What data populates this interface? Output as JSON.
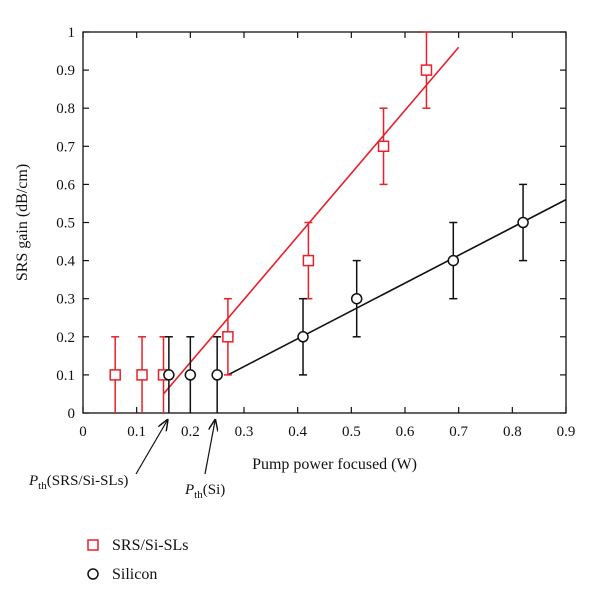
{
  "chart_data": {
    "type": "scatter",
    "title": "",
    "xlabel": "Pump power focused (W)",
    "ylabel": "SRS gain (dB/cm)",
    "xlim": [
      0,
      0.9
    ],
    "ylim": [
      0,
      1
    ],
    "xticks": [
      "0",
      "0.1",
      "0.2",
      "0.3",
      "0.4",
      "0.5",
      "0.6",
      "0.7",
      "0.8",
      "0.9"
    ],
    "yticks": [
      "0",
      "0.1",
      "0.2",
      "0.3",
      "0.4",
      "0.5",
      "0.6",
      "0.7",
      "0.8",
      "0.9",
      "1"
    ],
    "grid": false,
    "legend_position": "bottom-left, below plot",
    "series": [
      {
        "name": "SRS/Si-SLs",
        "marker": "square",
        "color": "#e8202a",
        "x": [
          0.06,
          0.11,
          0.15,
          0.27,
          0.42,
          0.56,
          0.64
        ],
        "y": [
          0.1,
          0.1,
          0.1,
          0.2,
          0.4,
          0.7,
          0.9
        ],
        "err": [
          0.1,
          0.1,
          0.1,
          0.1,
          0.1,
          0.1,
          0.1
        ],
        "fit": {
          "x": [
            0.15,
            0.7
          ],
          "y": [
            0.05,
            0.96
          ]
        }
      },
      {
        "name": "Silicon",
        "marker": "circle",
        "color": "#111111",
        "x": [
          0.16,
          0.2,
          0.25,
          0.41,
          0.51,
          0.69,
          0.82
        ],
        "y": [
          0.1,
          0.1,
          0.1,
          0.2,
          0.3,
          0.4,
          0.5
        ],
        "err": [
          0.1,
          0.1,
          0.1,
          0.1,
          0.1,
          0.1,
          0.1
        ],
        "fit": {
          "x": [
            0.27,
            0.9
          ],
          "y": [
            0.1,
            0.56
          ]
        }
      }
    ],
    "annotations": [
      {
        "main": "P",
        "sub": "th",
        "rest": "(SRS/Si-SLs)",
        "points_to_x": 0.15
      },
      {
        "main": "P",
        "sub": "th",
        "rest": "(Si)",
        "points_to_x": 0.25
      }
    ]
  }
}
